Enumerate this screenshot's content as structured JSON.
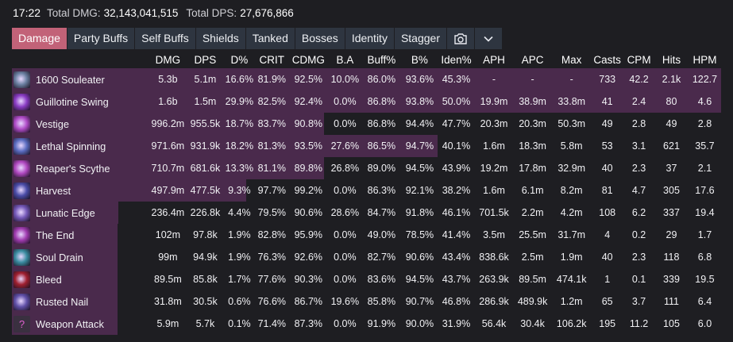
{
  "header": {
    "time": "17:22",
    "total_dmg_label": "Total DMG:",
    "total_dmg": "32,143,041,515",
    "total_dps_label": "Total DPS:",
    "total_dps": "27,676,866"
  },
  "tabs": [
    {
      "label": "Damage",
      "active": true
    },
    {
      "label": "Party Buffs"
    },
    {
      "label": "Self Buffs"
    },
    {
      "label": "Shields"
    },
    {
      "label": "Tanked"
    },
    {
      "label": "Bosses"
    },
    {
      "label": "Identity"
    },
    {
      "label": "Stagger"
    }
  ],
  "tab_icons": [
    "camera-icon",
    "chevron-down-icon"
  ],
  "columns": [
    "",
    "DMG",
    "DPS",
    "D%",
    "CRIT",
    "CDMG",
    "B.A",
    "Buff%",
    "B%",
    "Iden%",
    "APH",
    "APC",
    "Max",
    "Casts",
    "CPM",
    "Hits",
    "HPM"
  ],
  "colors": {
    "bar": "#4a2a4c",
    "active_tab": "#c26278",
    "tab": "#2e3540"
  },
  "rows": [
    {
      "name": "1600 Souleater",
      "icon": "souleater-icon",
      "icon_color": "#6a7fa0",
      "share": 1.0,
      "cells": [
        "5.3b",
        "5.1m",
        "16.6%",
        "81.9%",
        "92.5%",
        "10.0%",
        "86.0%",
        "93.6%",
        "45.3%",
        "-",
        "-",
        "-",
        "733",
        "42.2",
        "2.1k",
        "122.7"
      ]
    },
    {
      "name": "Guillotine Swing",
      "icon": "guillotine-swing-icon",
      "icon_color": "#8a3cc4",
      "share": 1.0,
      "cells": [
        "1.6b",
        "1.5m",
        "29.9%",
        "82.5%",
        "92.4%",
        "0.0%",
        "86.8%",
        "93.8%",
        "50.0%",
        "19.9m",
        "38.9m",
        "33.8m",
        "41",
        "2.4",
        "80",
        "4.6"
      ]
    },
    {
      "name": "Vestige",
      "icon": "vestige-icon",
      "icon_color": "#b04cc8",
      "share": 0.44,
      "cells": [
        "996.2m",
        "955.5k",
        "18.7%",
        "83.7%",
        "90.8%",
        "0.0%",
        "86.8%",
        "94.4%",
        "47.7%",
        "20.3m",
        "20.3m",
        "50.3m",
        "49",
        "2.8",
        "49",
        "2.8"
      ]
    },
    {
      "name": "Lethal Spinning",
      "icon": "lethal-spinning-icon",
      "icon_color": "#5a6cc0",
      "share": 0.6,
      "cells": [
        "971.6m",
        "931.9k",
        "18.2%",
        "81.3%",
        "93.5%",
        "27.6%",
        "86.5%",
        "94.7%",
        "40.1%",
        "1.6m",
        "18.3m",
        "5.8m",
        "53",
        "3.1",
        "621",
        "35.7"
      ]
    },
    {
      "name": "Reaper's Scythe",
      "icon": "reapers-scythe-icon",
      "icon_color": "#b048c0",
      "share": 0.44,
      "cells": [
        "710.7m",
        "681.6k",
        "13.3%",
        "81.1%",
        "89.8%",
        "26.8%",
        "89.0%",
        "94.5%",
        "43.9%",
        "19.2m",
        "17.8m",
        "32.9m",
        "40",
        "2.3",
        "37",
        "2.1"
      ]
    },
    {
      "name": "Harvest",
      "icon": "harvest-icon",
      "icon_color": "#4a4ca8",
      "share": 0.33,
      "cells": [
        "497.9m",
        "477.5k",
        "9.3%",
        "97.7%",
        "99.2%",
        "0.0%",
        "86.3%",
        "92.1%",
        "38.2%",
        "1.6m",
        "6.1m",
        "8.2m",
        "81",
        "4.7",
        "305",
        "17.6"
      ]
    },
    {
      "name": "Lunatic Edge",
      "icon": "lunatic-edge-icon",
      "icon_color": "#7458b8",
      "share": 0.15,
      "cells": [
        "236.4m",
        "226.8k",
        "4.4%",
        "79.5%",
        "90.6%",
        "28.6%",
        "84.7%",
        "91.8%",
        "46.1%",
        "701.5k",
        "2.2m",
        "4.2m",
        "108",
        "6.2",
        "337",
        "19.4"
      ]
    },
    {
      "name": "The End",
      "icon": "the-end-icon",
      "icon_color": "#a03cb0",
      "share": 0.0,
      "cells": [
        "102m",
        "97.8k",
        "1.9%",
        "82.8%",
        "95.9%",
        "0.0%",
        "49.0%",
        "78.5%",
        "41.4%",
        "3.5m",
        "25.5m",
        "31.7m",
        "4",
        "0.2",
        "29",
        "1.7"
      ]
    },
    {
      "name": "Soul Drain",
      "icon": "soul-drain-icon",
      "icon_color": "#3a8ca0",
      "share": 0.0,
      "cells": [
        "99m",
        "94.9k",
        "1.9%",
        "76.3%",
        "92.6%",
        "0.0%",
        "82.7%",
        "90.6%",
        "43.4%",
        "838.6k",
        "2.5m",
        "1.9m",
        "40",
        "2.3",
        "118",
        "6.8"
      ]
    },
    {
      "name": "Bleed",
      "icon": "bleed-icon",
      "icon_color": "#a02030",
      "share": 0.0,
      "cells": [
        "89.5m",
        "85.8k",
        "1.7%",
        "77.6%",
        "90.3%",
        "0.0%",
        "83.6%",
        "94.5%",
        "43.7%",
        "263.9k",
        "89.5m",
        "474.1k",
        "1",
        "0.1",
        "339",
        "19.5"
      ]
    },
    {
      "name": "Rusted Nail",
      "icon": "rusted-nail-icon",
      "icon_color": "#6050a8",
      "share": 0.0,
      "cells": [
        "31.8m",
        "30.5k",
        "0.6%",
        "76.6%",
        "86.7%",
        "19.6%",
        "85.8%",
        "90.7%",
        "46.8%",
        "286.9k",
        "489.9k",
        "1.2m",
        "65",
        "3.7",
        "111",
        "6.4"
      ]
    },
    {
      "name": "Weapon Attack",
      "icon": "question-icon",
      "icon_color": "#3a3040",
      "share": 0.0,
      "cells": [
        "5.9m",
        "5.7k",
        "0.1%",
        "71.4%",
        "87.3%",
        "0.0%",
        "91.9%",
        "90.0%",
        "31.9%",
        "56.4k",
        "30.4k",
        "106.2k",
        "195",
        "11.2",
        "105",
        "6.0"
      ]
    }
  ]
}
